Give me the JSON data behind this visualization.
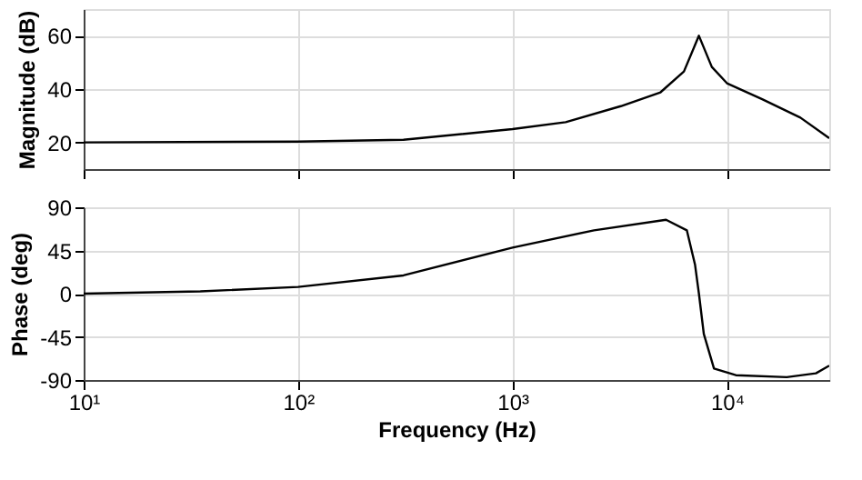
{
  "chart_data": [
    {
      "type": "line",
      "ylabel": "Magnitude (dB)",
      "log": "x",
      "grid": true,
      "tick_labels": "y",
      "xlim": [
        10,
        30000
      ],
      "ylim": [
        10,
        70
      ],
      "xticks": [
        {
          "value": 10,
          "label": null
        },
        {
          "value": 100,
          "label": null
        },
        {
          "value": 1000,
          "label": null
        },
        {
          "value": 10000,
          "label": null
        }
      ],
      "yticks": [
        20,
        40,
        60
      ],
      "series": [
        {
          "color": "#000000",
          "x": [
            10,
            100,
            310,
            1000,
            1770,
            3200,
            4900,
            6300,
            7400,
            8500,
            10000,
            14600,
            22000,
            30000
          ],
          "values": [
            20,
            20.3,
            21,
            25,
            27.6,
            33.6,
            38.8,
            46.6,
            60,
            48.3,
            42.2,
            36.2,
            29.3,
            21.6
          ]
        }
      ]
    },
    {
      "type": "line",
      "ylabel": "Phase (deg)",
      "xlabel": "Frequency  (Hz)",
      "log": "x",
      "grid": true,
      "xlim": [
        10,
        30000
      ],
      "ylim": [
        -90,
        90
      ],
      "xticks": [
        {
          "value": 10,
          "label": "10¹"
        },
        {
          "value": 100,
          "label": "10²"
        },
        {
          "value": 1000,
          "label": "10³"
        },
        {
          "value": 10000,
          "label": "10⁴"
        }
      ],
      "yticks": [
        -90,
        -45,
        0,
        45,
        90
      ],
      "series": [
        {
          "color": "#000000",
          "x": [
            10,
            35,
            100,
            310,
            1000,
            2400,
            5200,
            6500,
            7100,
            7400,
            7800,
            8700,
            11000,
            19000,
            26000,
            30000
          ],
          "values": [
            0,
            2.4,
            7,
            19,
            48,
            66,
            77,
            66,
            30,
            0,
            -42,
            -78,
            -85,
            -87,
            -83,
            -75
          ]
        }
      ]
    }
  ]
}
